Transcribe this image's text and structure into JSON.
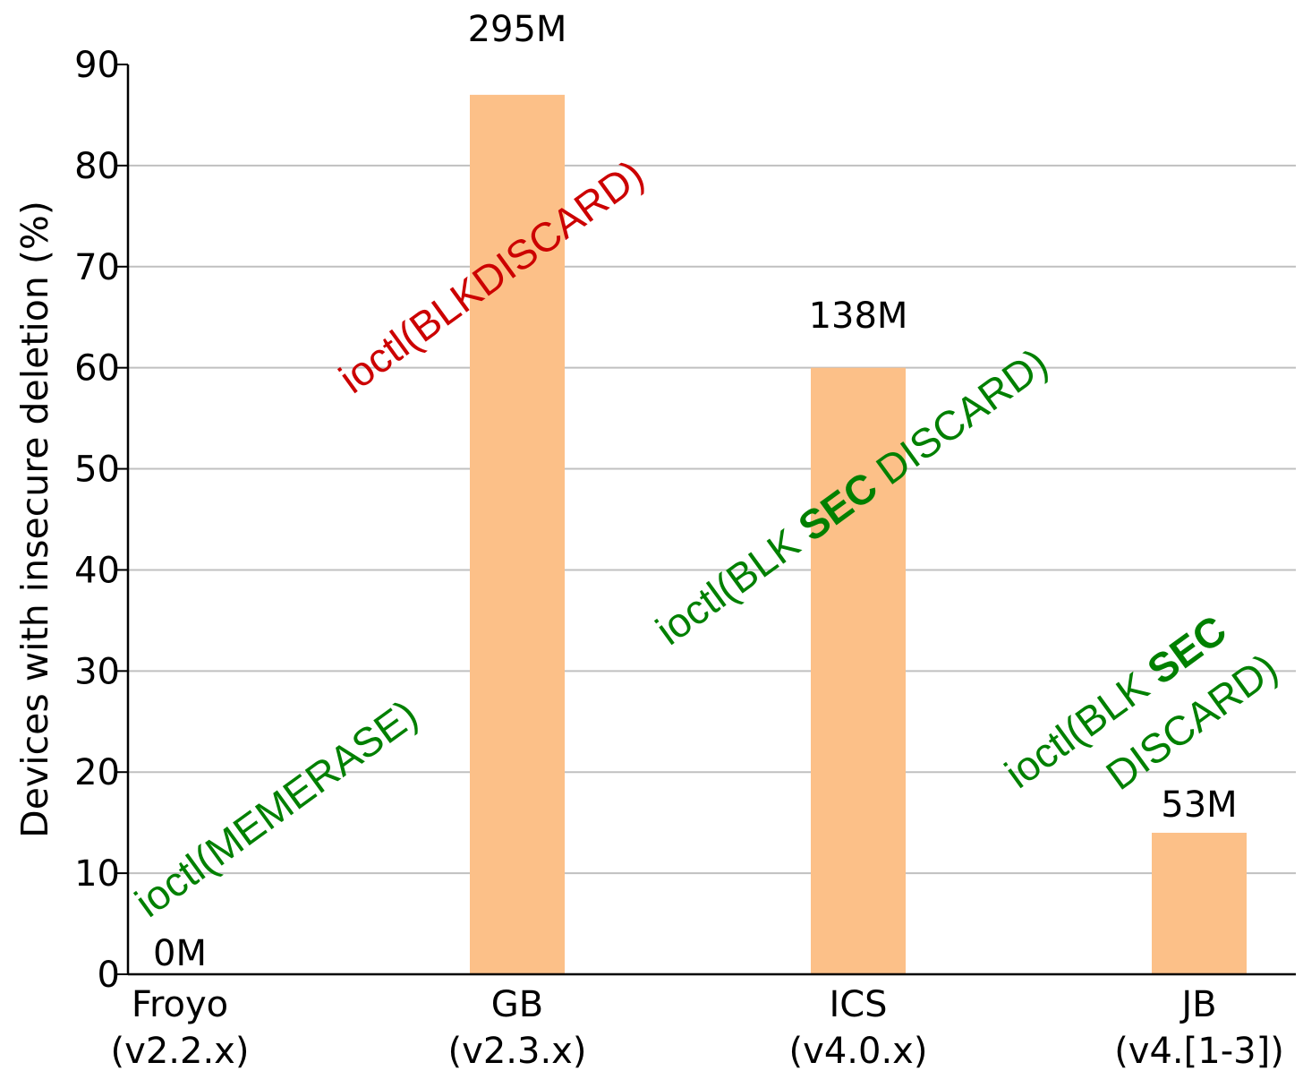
{
  "chart_data": {
    "type": "bar",
    "ylabel": "Devices with insecure deletion (%)",
    "ylim": [
      0,
      90
    ],
    "yticks": [
      0,
      10,
      20,
      30,
      40,
      50,
      60,
      70,
      80,
      90
    ],
    "grid": true,
    "categories": [
      {
        "name": "Froyo",
        "version": "(v2.2.x)"
      },
      {
        "name": "GB",
        "version": "(v2.3.x)"
      },
      {
        "name": "ICS",
        "version": "(v4.0.x)"
      },
      {
        "name": "JB",
        "version": "(v4.[1-3])"
      }
    ],
    "values": [
      0,
      87,
      60,
      14
    ],
    "bar_labels": [
      "0M",
      "295M",
      "138M",
      "53M"
    ],
    "bar_color": "#fcc088",
    "annotations": [
      {
        "parts": [
          {
            "text": "ioctl(MEMERASE)",
            "bold": false
          }
        ],
        "color": "#008000"
      },
      {
        "parts": [
          {
            "text": "ioctl(BLKDISCARD)",
            "bold": false
          }
        ],
        "color": "#cc0000"
      },
      {
        "parts": [
          {
            "text": "ioctl(BLK ",
            "bold": false
          },
          {
            "text": "SEC",
            "bold": true
          },
          {
            "text": " DISCARD)",
            "bold": false
          }
        ],
        "color": "#008000"
      },
      {
        "parts": [
          {
            "text": "ioctl(BLK ",
            "bold": false
          },
          {
            "text": "SEC",
            "bold": true
          }
        ],
        "color": "#008000"
      },
      {
        "parts": [
          {
            "text": "DISCARD)",
            "bold": false
          }
        ],
        "color": "#008000"
      }
    ]
  }
}
